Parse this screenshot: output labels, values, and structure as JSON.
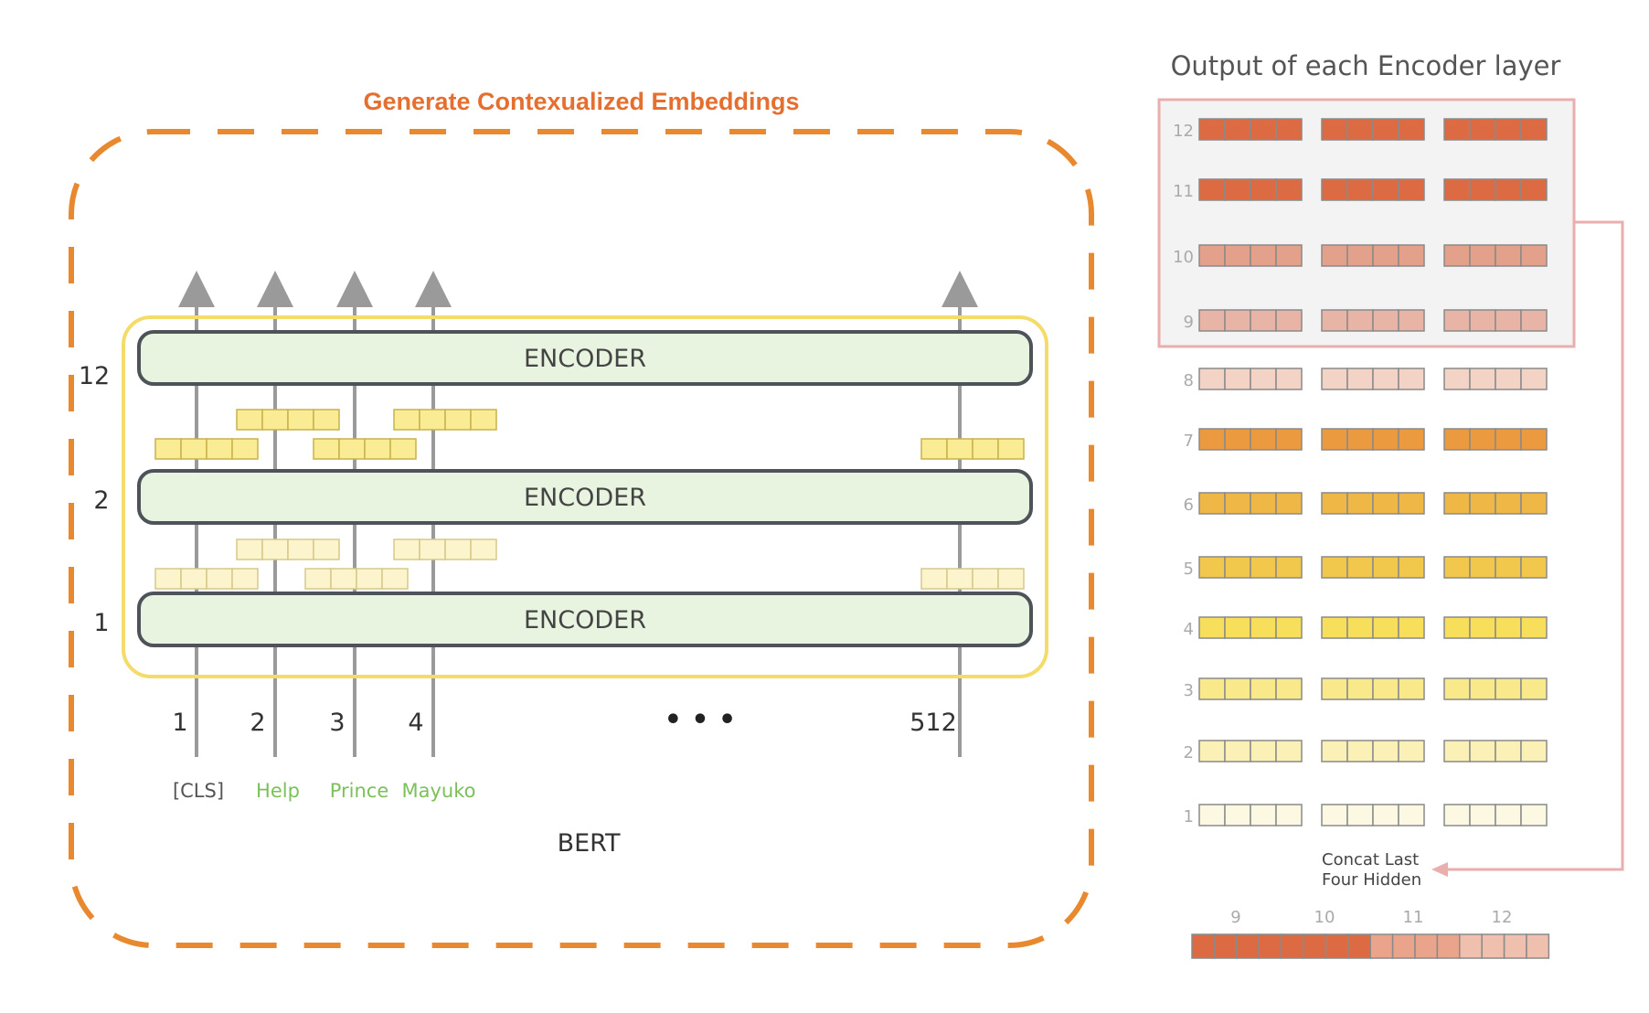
{
  "title": "Generate Contexualized Embeddings",
  "right_title": "Output of each Encoder layer",
  "model_label": "BERT",
  "encoders": [
    {
      "label": "ENCODER",
      "layer": "12"
    },
    {
      "label": "ENCODER",
      "layer": "2"
    },
    {
      "label": "ENCODER",
      "layer": "1"
    }
  ],
  "positions": [
    "1",
    "2",
    "3",
    "4",
    "512"
  ],
  "ellipsis": "• • •",
  "tokens": [
    {
      "text": "[CLS]",
      "color": "#555555"
    },
    {
      "text": "Help",
      "color": "#7cc05a"
    },
    {
      "text": "Prince",
      "color": "#7cc05a"
    },
    {
      "text": "Mayuko",
      "color": "#7cc05a"
    }
  ],
  "layers": [
    {
      "label": "12",
      "color": "#dc6b43"
    },
    {
      "label": "11",
      "color": "#dc6b43"
    },
    {
      "label": "10",
      "color": "#e3a08a"
    },
    {
      "label": "9",
      "color": "#e7b4a5"
    },
    {
      "label": "8",
      "color": "#f3d3c6"
    },
    {
      "label": "7",
      "color": "#eb9a3f"
    },
    {
      "label": "6",
      "color": "#efb746"
    },
    {
      "label": "5",
      "color": "#f1c74c"
    },
    {
      "label": "4",
      "color": "#f7df5b"
    },
    {
      "label": "3",
      "color": "#f9e98a"
    },
    {
      "label": "2",
      "color": "#fbf1b6"
    },
    {
      "label": "1",
      "color": "#fdf8e1"
    }
  ],
  "concat_label_line1": "Concat Last",
  "concat_label_line2": "Four Hidden",
  "concat_numbers": [
    "9",
    "10",
    "11",
    "12"
  ],
  "concat_colors": [
    "#dc6b43",
    "#dc6b43",
    "#dc6b43",
    "#dc6b43",
    "#dc6b43",
    "#dc6b43",
    "#dc6b43",
    "#dc6b43",
    "#e9a48b",
    "#e9a48b",
    "#e9a48b",
    "#e9a48b",
    "#efc0ae",
    "#efc0ae",
    "#efc0ae",
    "#efc0ae"
  ],
  "colors": {
    "accent_orange": "#e8892f",
    "encoder_fill": "#e8f4e0",
    "encoder_stroke": "#4d5358",
    "highlight_yellow": "#f4dc6a",
    "token_bright": "#f9ec94",
    "token_light": "#fcf4cc",
    "pink_box": "#e9aeae"
  }
}
